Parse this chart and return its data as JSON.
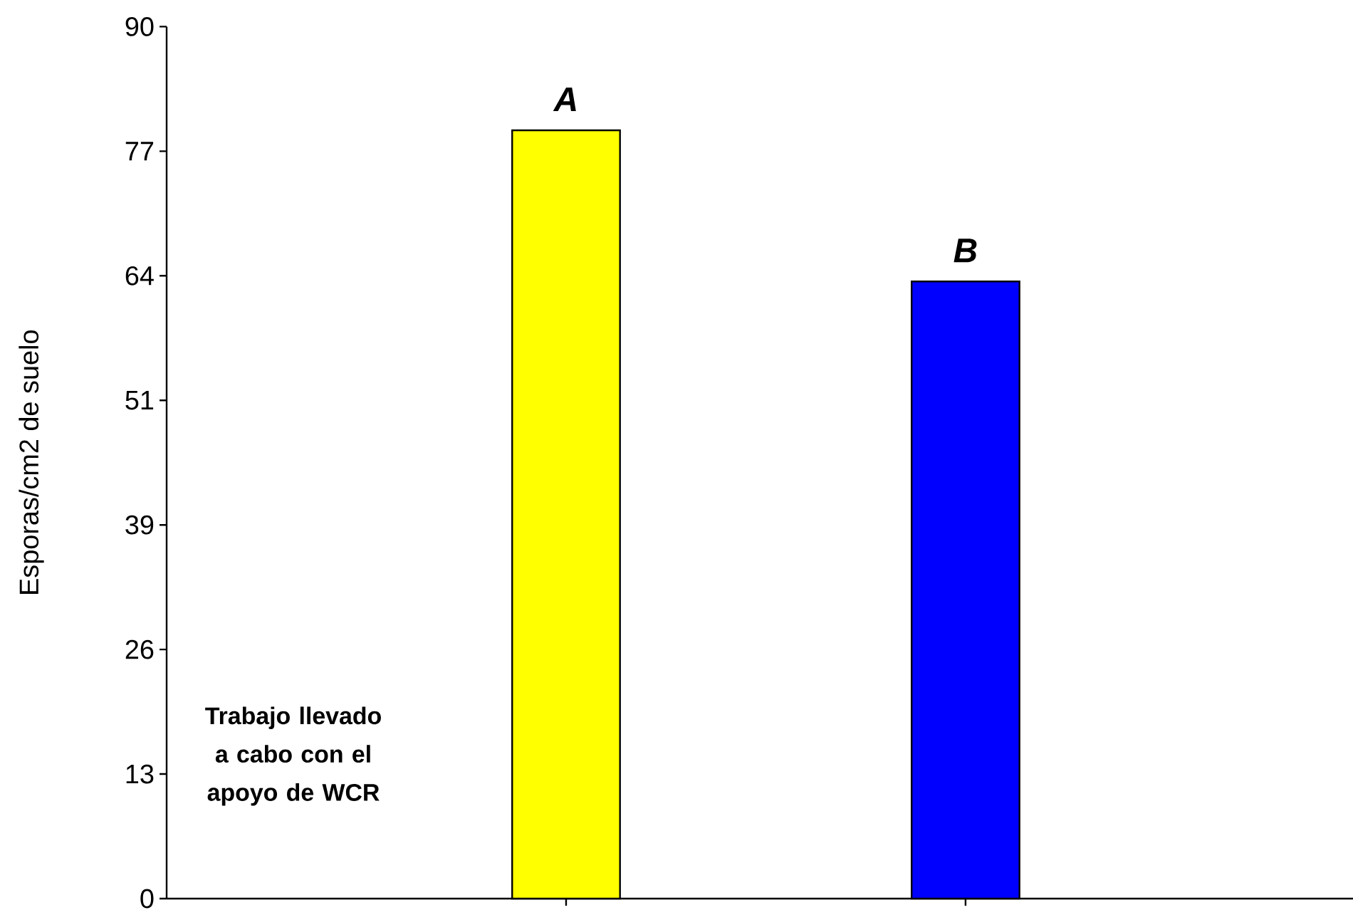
{
  "chart_data": {
    "type": "bar",
    "ylabel": "Esporas/cm2 de suelo",
    "categories": [
      null,
      null
    ],
    "values": [
      79.3,
      63.7
    ],
    "colors": [
      "#ffff00",
      "#0000ff"
    ],
    "ylim": [
      0,
      90
    ],
    "yticks": [
      0,
      {
        "value": 12.857,
        "label": "13"
      },
      {
        "value": 25.714,
        "label": "26"
      },
      {
        "value": 38.571,
        "label": "39"
      },
      {
        "value": 51.429,
        "label": "51"
      },
      {
        "value": 64.286,
        "label": "64"
      },
      {
        "value": 77.143,
        "label": "77"
      },
      90
    ],
    "grid": false,
    "annotations": [
      {
        "text": "A",
        "y": 79.3
      },
      {
        "text": "B",
        "y": 63.7
      },
      "Trabajo llevado a cabo con  el apoyo de WCR"
    ]
  }
}
